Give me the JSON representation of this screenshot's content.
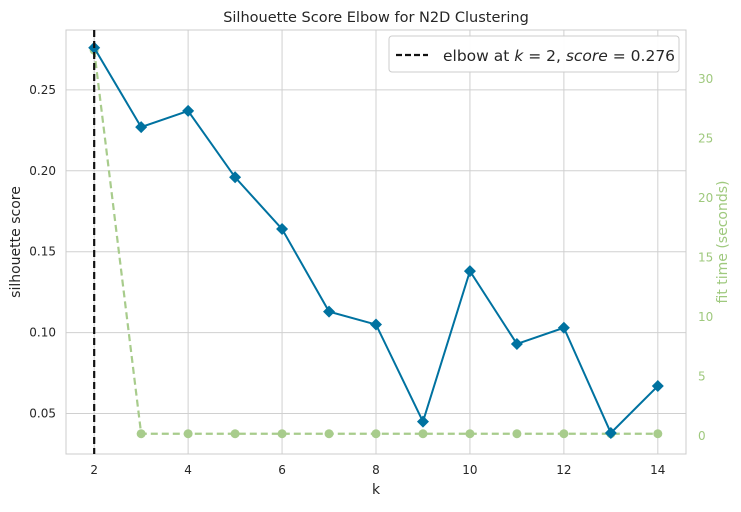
{
  "chart_data": {
    "type": "line",
    "title": "Silhouette Score Elbow for N2D Clustering",
    "xlabel": "k",
    "ylabel": "silhouette score",
    "y2label": "fit time (seconds)",
    "xlim": [
      1.4,
      14.6
    ],
    "ylim": [
      0.025,
      0.287
    ],
    "y2lim": [
      -1.5,
      34.1
    ],
    "x_ticks": [
      2,
      4,
      6,
      8,
      10,
      12,
      14
    ],
    "y_ticks": [
      0.05,
      0.1,
      0.15,
      0.2,
      0.25
    ],
    "y_tick_labels": [
      "0.05",
      "0.10",
      "0.15",
      "0.20",
      "0.25"
    ],
    "y2_ticks": [
      0,
      5,
      10,
      15,
      20,
      25,
      30
    ],
    "grid": true,
    "legend_position": "top-right",
    "series": [
      {
        "axis": "left",
        "marker": "diamond",
        "color": "#0072a0",
        "x": [
          2,
          3,
          4,
          5,
          6,
          7,
          8,
          9,
          10,
          11,
          12,
          13,
          14
        ],
        "values": [
          0.276,
          0.227,
          0.237,
          0.196,
          0.164,
          0.113,
          0.105,
          0.045,
          0.138,
          0.093,
          0.103,
          0.038,
          0.067
        ]
      },
      {
        "axis": "right",
        "marker": "circle",
        "line_style": "dashed",
        "color": "#a8cc8c",
        "x": [
          2,
          3,
          4,
          5,
          6,
          7,
          8,
          9,
          10,
          11,
          12,
          13,
          14
        ],
        "values": [
          32.4,
          0.2,
          0.2,
          0.2,
          0.2,
          0.2,
          0.2,
          0.2,
          0.2,
          0.2,
          0.2,
          0.2,
          0.2
        ]
      }
    ],
    "elbow": {
      "k": 2,
      "score": 0.276,
      "legend_prefix": "elbow at ",
      "k_symbol": "k",
      "eq1": " = 2, ",
      "score_symbol": "score",
      "eq2": " = 0.276"
    },
    "colors": {
      "grid": "#d0d0d0",
      "axis": "#cccccc",
      "text": "#262626",
      "right_axis_text": "#9fc97e",
      "elbow_line": "#111111"
    }
  }
}
